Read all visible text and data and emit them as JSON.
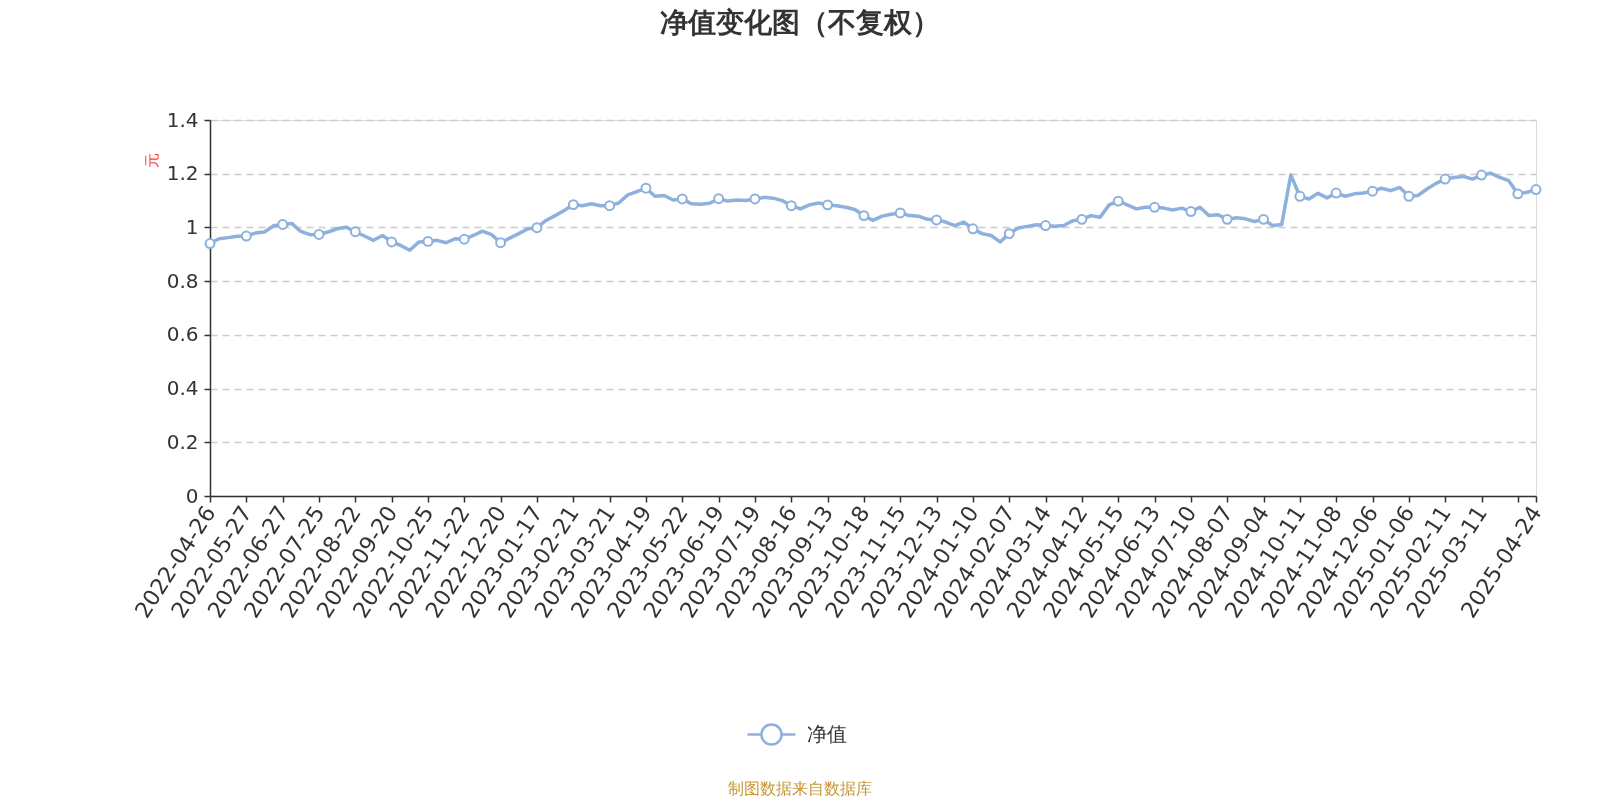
{
  "chart_data": {
    "type": "line",
    "title": "净值变化图（不复权）",
    "ylabel": "元",
    "categories": [
      "2022-04-26",
      null,
      null,
      null,
      "2022-05-27",
      null,
      null,
      null,
      "2022-06-27",
      null,
      null,
      null,
      "2022-07-25",
      null,
      null,
      null,
      "2022-08-22",
      null,
      null,
      null,
      "2022-09-20",
      null,
      null,
      null,
      "2022-10-25",
      null,
      null,
      null,
      "2022-11-22",
      null,
      null,
      null,
      "2022-12-20",
      null,
      null,
      null,
      "2023-01-17",
      null,
      null,
      null,
      "2023-02-21",
      null,
      null,
      null,
      "2023-03-21",
      null,
      null,
      null,
      "2023-04-19",
      null,
      null,
      null,
      "2023-05-22",
      null,
      null,
      null,
      "2023-06-19",
      null,
      null,
      null,
      "2023-07-19",
      null,
      null,
      null,
      "2023-08-16",
      null,
      null,
      null,
      "2023-09-13",
      null,
      null,
      null,
      "2023-10-18",
      null,
      null,
      null,
      "2023-11-15",
      null,
      null,
      null,
      "2023-12-13",
      null,
      null,
      null,
      "2024-01-10",
      null,
      null,
      null,
      "2024-02-07",
      null,
      null,
      null,
      "2024-03-14",
      null,
      null,
      null,
      "2024-04-12",
      null,
      null,
      null,
      "2024-05-15",
      null,
      null,
      null,
      "2024-06-13",
      null,
      null,
      null,
      "2024-07-10",
      null,
      null,
      null,
      "2024-08-07",
      null,
      null,
      null,
      "2024-09-04",
      null,
      null,
      null,
      "2024-10-11",
      null,
      null,
      null,
      "2024-11-08",
      null,
      null,
      null,
      "2024-12-06",
      null,
      null,
      null,
      "2025-01-06",
      null,
      null,
      null,
      "2025-02-11",
      null,
      null,
      null,
      "2025-03-11",
      null,
      null,
      null,
      null,
      null,
      "2025-04-24"
    ],
    "series": [
      {
        "name": "净值",
        "color": "#8eb0dd",
        "marker": "none",
        "values": [
          0.94,
          0.958,
          0.962,
          0.967,
          0.968,
          0.979,
          0.983,
          1.006,
          1.011,
          1.015,
          0.985,
          0.973,
          0.974,
          0.983,
          0.995,
          1.001,
          0.984,
          0.968,
          0.952,
          0.97,
          0.946,
          0.933,
          0.915,
          0.946,
          0.948,
          0.952,
          0.943,
          0.958,
          0.956,
          0.97,
          0.986,
          0.973,
          0.943,
          0.96,
          0.977,
          0.995,
          0.999,
          1.026,
          1.044,
          1.063,
          1.085,
          1.081,
          1.088,
          1.081,
          1.081,
          1.091,
          1.121,
          1.133,
          1.146,
          1.116,
          1.119,
          1.102,
          1.106,
          1.088,
          1.086,
          1.09,
          1.107,
          1.098,
          1.102,
          1.1,
          1.106,
          1.112,
          1.109,
          1.1,
          1.081,
          1.069,
          1.084,
          1.091,
          1.084,
          1.081,
          1.075,
          1.067,
          1.044,
          1.026,
          1.042,
          1.049,
          1.054,
          1.044,
          1.042,
          1.03,
          1.028,
          1.02,
          1.007,
          1.02,
          0.995,
          0.977,
          0.97,
          0.946,
          0.977,
          0.998,
          1.004,
          1.01,
          1.007,
          1.004,
          1.007,
          1.025,
          1.03,
          1.044,
          1.038,
          1.084,
          1.098,
          1.084,
          1.069,
          1.075,
          1.075,
          1.072,
          1.065,
          1.072,
          1.059,
          1.075,
          1.044,
          1.047,
          1.03,
          1.036,
          1.032,
          1.022,
          1.03,
          1.007,
          1.011,
          1.195,
          1.116,
          1.106,
          1.127,
          1.11,
          1.128,
          1.116,
          1.125,
          1.128,
          1.135,
          1.146,
          1.137,
          1.149,
          1.116,
          1.119,
          1.143,
          1.164,
          1.18,
          1.186,
          1.19,
          1.18,
          1.195,
          1.202,
          1.186,
          1.174,
          1.125,
          1.131,
          1.141
        ]
      },
      {
        "type": "scatter",
        "color": "#8eb0dd",
        "values": [
          0.94,
          null,
          null,
          null,
          0.968,
          null,
          null,
          null,
          1.011,
          null,
          null,
          null,
          0.974,
          null,
          null,
          null,
          0.984,
          null,
          null,
          null,
          0.946,
          null,
          null,
          null,
          0.948,
          null,
          null,
          null,
          0.956,
          null,
          null,
          null,
          0.943,
          null,
          null,
          null,
          0.999,
          null,
          null,
          null,
          1.085,
          null,
          null,
          null,
          1.081,
          null,
          null,
          null,
          1.146,
          null,
          null,
          null,
          1.106,
          null,
          null,
          null,
          1.107,
          null,
          null,
          null,
          1.106,
          null,
          null,
          null,
          1.081,
          null,
          null,
          null,
          1.084,
          null,
          null,
          null,
          1.044,
          null,
          null,
          null,
          1.054,
          null,
          null,
          null,
          1.028,
          null,
          null,
          null,
          0.995,
          null,
          null,
          null,
          0.977,
          null,
          null,
          null,
          1.007,
          null,
          null,
          null,
          1.03,
          null,
          null,
          null,
          1.098,
          null,
          null,
          null,
          1.075,
          null,
          null,
          null,
          1.059,
          null,
          null,
          null,
          1.03,
          null,
          null,
          null,
          1.03,
          null,
          null,
          null,
          1.116,
          null,
          null,
          null,
          1.128,
          null,
          null,
          null,
          1.135,
          null,
          null,
          null,
          1.116,
          null,
          null,
          null,
          1.18,
          null,
          null,
          null,
          1.195,
          null,
          null,
          null,
          1.125,
          null,
          1.141
        ]
      }
    ],
    "ylim": [
      0,
      1.4
    ],
    "yticks": [
      0,
      0.2,
      0.4,
      0.6,
      0.8,
      1,
      1.2,
      1.4
    ],
    "grid": "y",
    "legend": "bottom",
    "marker": "circle",
    "line_style": "solid",
    "annotations": [
      "制图数据来自数据库"
    ]
  }
}
